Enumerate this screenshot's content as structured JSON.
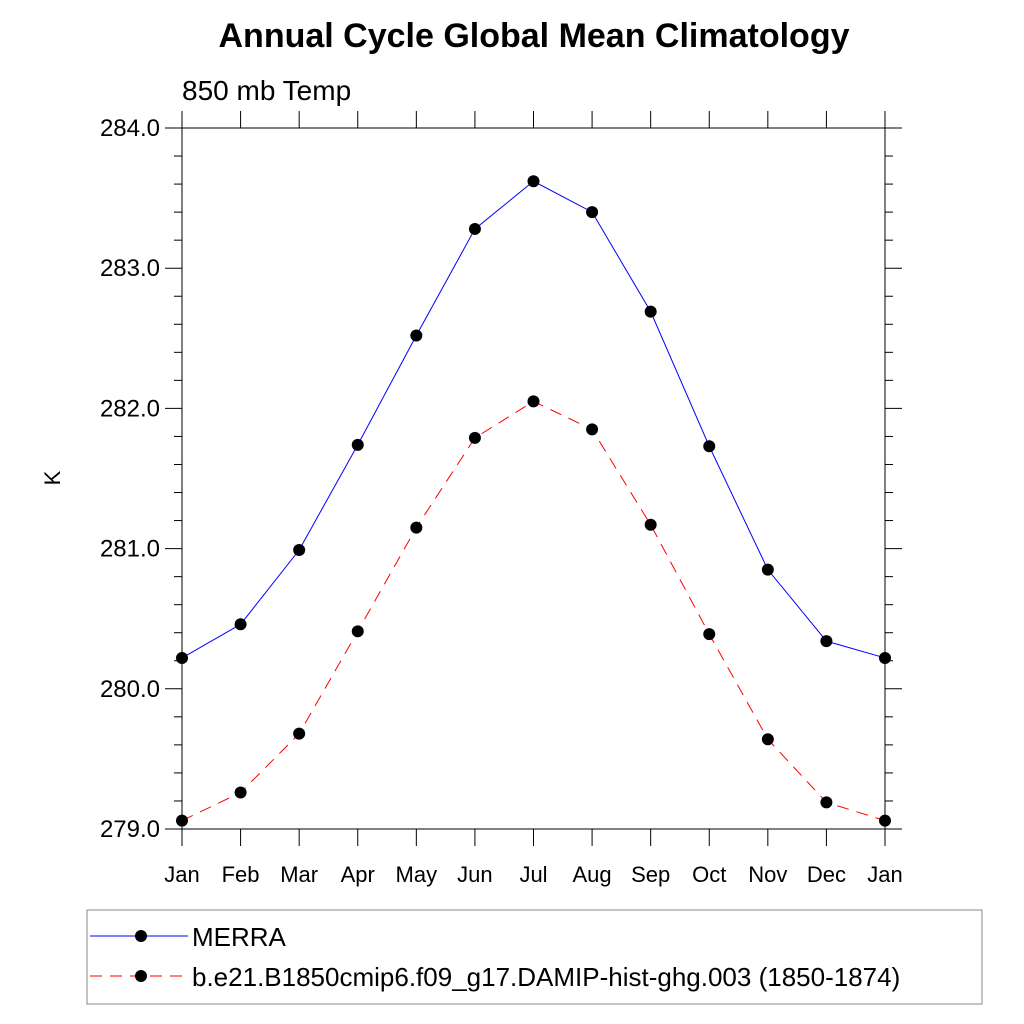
{
  "chart_data": {
    "type": "line",
    "title": "Annual Cycle Global Mean Climatology",
    "subtitle": "850 mb Temp",
    "xlabel": "",
    "ylabel": "K",
    "categories": [
      "Jan",
      "Feb",
      "Mar",
      "Apr",
      "May",
      "Jun",
      "Jul",
      "Aug",
      "Sep",
      "Oct",
      "Nov",
      "Dec",
      "Jan"
    ],
    "ylim": [
      279.0,
      284.0
    ],
    "yticks": [
      "279.0",
      "280.0",
      "281.0",
      "282.0",
      "283.0",
      "284.0"
    ],
    "grid": false,
    "legend_position": "bottom",
    "series": [
      {
        "name": "MERRA",
        "color": "#0000ff",
        "line_style": "solid",
        "marker": "filled-circle",
        "values": [
          280.22,
          280.46,
          280.99,
          281.74,
          282.52,
          283.28,
          283.62,
          283.4,
          282.69,
          281.73,
          280.85,
          280.34,
          280.22
        ]
      },
      {
        "name": "b.e21.B1850cmip6.f09_g17.DAMIP-hist-ghg.003 (1850-1874)",
        "color": "#ff0000",
        "line_style": "dashed",
        "marker": "filled-circle",
        "values": [
          279.06,
          279.26,
          279.68,
          280.41,
          281.15,
          281.79,
          282.05,
          281.85,
          281.17,
          280.39,
          279.64,
          279.19,
          279.06
        ]
      }
    ]
  }
}
